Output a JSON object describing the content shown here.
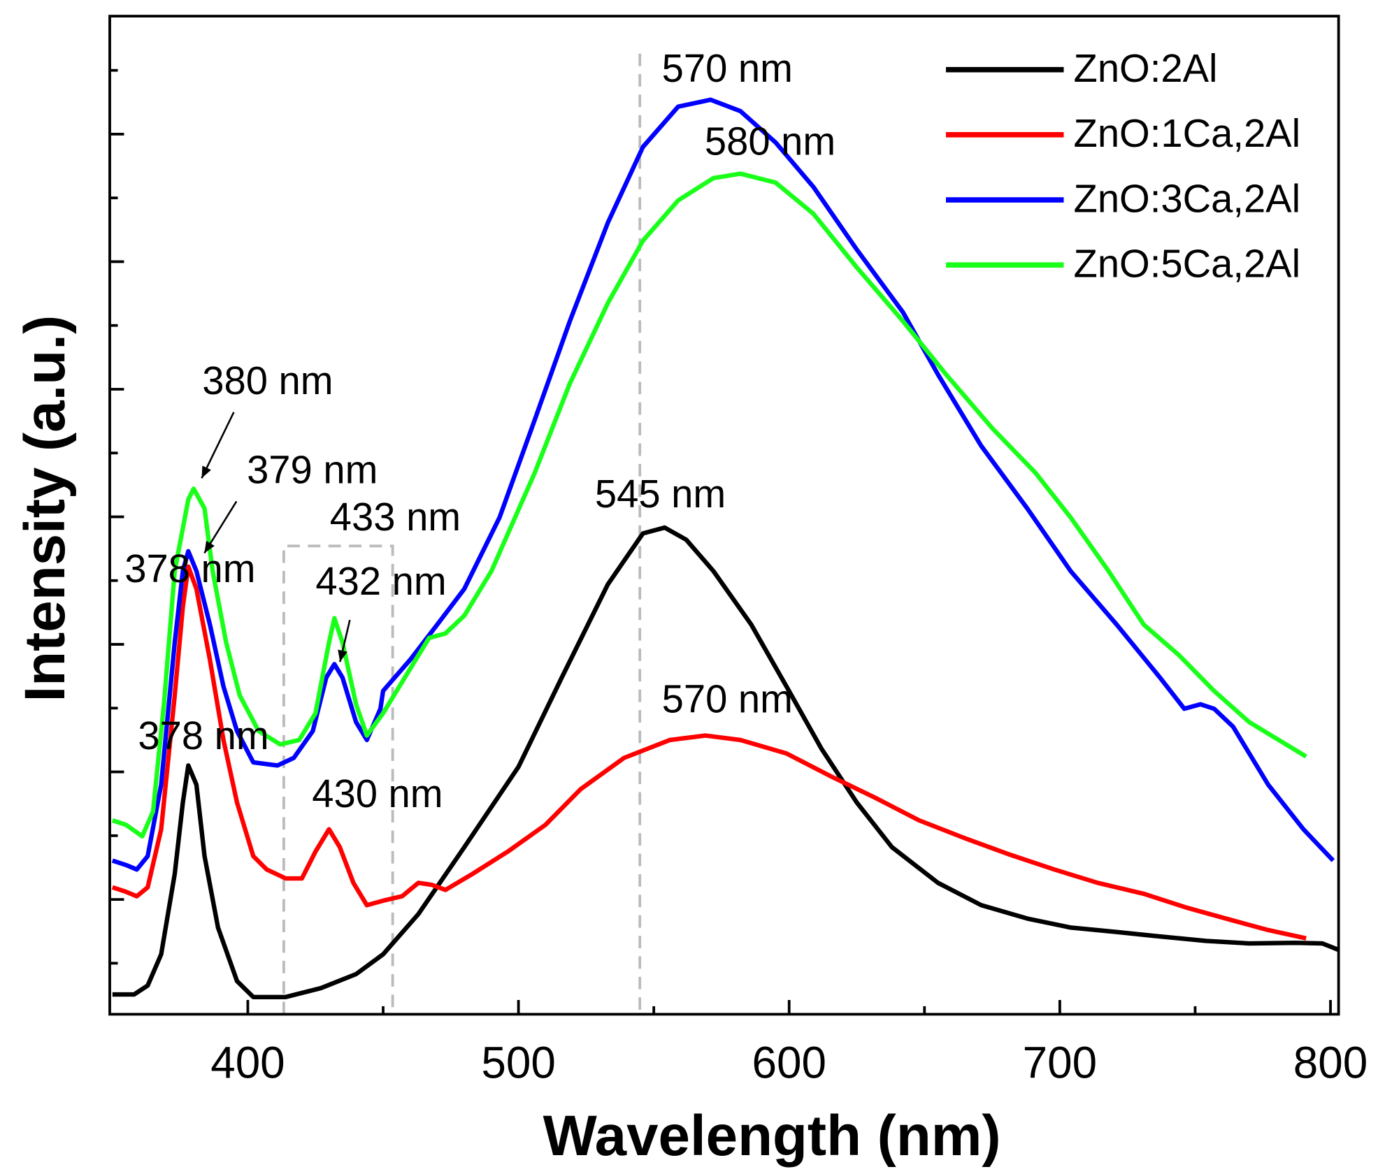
{
  "chart_data": {
    "type": "line",
    "xlabel": "Wavelength (nm)",
    "ylabel": "Intensity (a.u.)",
    "xlim": [
      349,
      803
    ],
    "xticks": [
      400,
      500,
      600,
      700,
      800
    ],
    "xminorticks": [
      450,
      550,
      650,
      750
    ],
    "ylim": [
      0.2,
      15.85
    ],
    "yticks": [
      1,
      2,
      3,
      4,
      5,
      6,
      7,
      8,
      9,
      10,
      11,
      12,
      13,
      14,
      15
    ],
    "legend": "upper right",
    "annotations": [
      "570 nm",
      "580 nm",
      "380 nm",
      "379 nm",
      "433 nm",
      "378 nm",
      "432 nm",
      "378 nm",
      "430 nm",
      "545 nm",
      "570 nm"
    ],
    "series": [
      {
        "name": "ZnO:2Al",
        "color": "#000000",
        "x": [
          350,
          358,
          363,
          368,
          373,
          376,
          378,
          381,
          384,
          389,
          396,
          402,
          414,
          427,
          440,
          450,
          463,
          480,
          500,
          516,
          533,
          546,
          554,
          562,
          572,
          586,
          599,
          612,
          625,
          638,
          655,
          671,
          688,
          704,
          721,
          737,
          754,
          770,
          787,
          797,
          803
        ],
        "values": [
          0.51,
          0.51,
          0.65,
          1.14,
          2.4,
          3.52,
          4.1,
          3.8,
          2.68,
          1.56,
          0.72,
          0.47,
          0.47,
          0.61,
          0.83,
          1.14,
          1.77,
          2.82,
          4.08,
          5.48,
          6.94,
          7.74,
          7.83,
          7.64,
          7.15,
          6.31,
          5.34,
          4.36,
          3.52,
          2.82,
          2.26,
          1.91,
          1.7,
          1.56,
          1.49,
          1.42,
          1.35,
          1.31,
          1.32,
          1.31,
          1.21
        ]
      },
      {
        "name": "ZnO:1Ca,2Al",
        "color": "#ff0000",
        "x": [
          350,
          355,
          359,
          363,
          368,
          373,
          376,
          378,
          381,
          386,
          391,
          396,
          402,
          407,
          414,
          420,
          425,
          430,
          434,
          439,
          444,
          450,
          457,
          463,
          468,
          473,
          483,
          496,
          510,
          523,
          539,
          556,
          569,
          582,
          599,
          615,
          632,
          648,
          665,
          681,
          698,
          714,
          731,
          747,
          764,
          777,
          791
        ],
        "values": [
          2.19,
          2.12,
          2.05,
          2.19,
          3.1,
          5.2,
          6.59,
          7.22,
          6.87,
          5.76,
          4.5,
          3.52,
          2.68,
          2.47,
          2.33,
          2.33,
          2.75,
          3.1,
          2.82,
          2.26,
          1.91,
          1.98,
          2.05,
          2.26,
          2.23,
          2.15,
          2.4,
          2.75,
          3.17,
          3.73,
          4.22,
          4.5,
          4.57,
          4.5,
          4.29,
          3.94,
          3.59,
          3.24,
          2.96,
          2.71,
          2.47,
          2.26,
          2.09,
          1.87,
          1.67,
          1.52,
          1.39
        ]
      },
      {
        "name": "ZnO:3Ca,2Al",
        "color": "#0000ff",
        "x": [
          350,
          355,
          359,
          363,
          368,
          373,
          376,
          378,
          381,
          386,
          391,
          396,
          402,
          411,
          417,
          424,
          429,
          432,
          435,
          440,
          444,
          449,
          450,
          460,
          470,
          480,
          493,
          506,
          519,
          533,
          546,
          559,
          571,
          582,
          595,
          609,
          625,
          642,
          655,
          671,
          688,
          704,
          721,
          737,
          746,
          752,
          757,
          764,
          777,
          790,
          801
        ],
        "values": [
          2.61,
          2.54,
          2.47,
          2.68,
          3.8,
          6.03,
          7.15,
          7.46,
          7.15,
          6.31,
          5.34,
          4.64,
          4.15,
          4.1,
          4.22,
          4.64,
          5.48,
          5.69,
          5.48,
          4.78,
          4.5,
          4.99,
          5.27,
          5.76,
          6.31,
          6.87,
          7.99,
          9.52,
          11.07,
          12.61,
          13.8,
          14.43,
          14.54,
          14.36,
          13.87,
          13.17,
          12.19,
          11.21,
          10.23,
          9.11,
          8.13,
          7.15,
          6.31,
          5.48,
          4.99,
          5.06,
          4.99,
          4.71,
          3.8,
          3.1,
          2.61
        ]
      },
      {
        "name": "ZnO:5Ca,2Al",
        "color": "#1aff1a",
        "x": [
          350,
          355,
          361,
          365,
          369,
          373,
          378,
          380,
          384,
          387,
          392,
          397,
          404,
          412,
          419,
          425,
          430,
          432,
          435,
          440,
          444,
          450,
          460,
          467,
          473,
          480,
          490,
          506,
          519,
          533,
          546,
          559,
          572,
          582,
          595,
          609,
          625,
          642,
          658,
          675,
          691,
          704,
          718,
          731,
          744,
          757,
          770,
          791
        ],
        "values": [
          3.24,
          3.17,
          2.99,
          3.38,
          5.06,
          7.15,
          8.27,
          8.44,
          8.13,
          7.15,
          6.03,
          5.2,
          4.64,
          4.43,
          4.5,
          4.92,
          6.03,
          6.41,
          6.03,
          5.06,
          4.57,
          4.92,
          5.62,
          6.1,
          6.17,
          6.45,
          7.15,
          8.69,
          10.09,
          11.35,
          12.33,
          12.96,
          13.31,
          13.38,
          13.24,
          12.75,
          11.91,
          11.07,
          10.23,
          9.39,
          8.69,
          7.99,
          7.15,
          6.31,
          5.83,
          5.27,
          4.78,
          4.24
        ]
      }
    ]
  }
}
